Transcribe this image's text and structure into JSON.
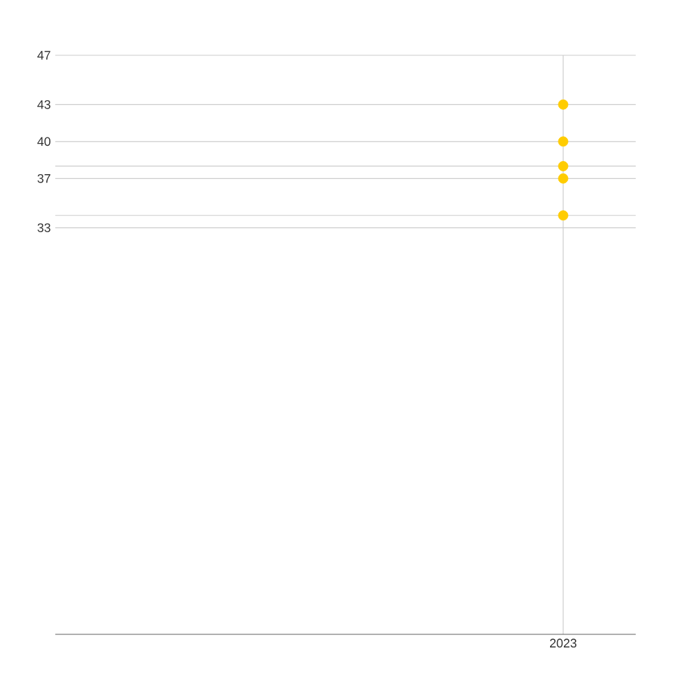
{
  "chart_data": {
    "type": "scatter",
    "categories": [
      "2023"
    ],
    "series": [
      {
        "color": "#ffcc00",
        "values": [
          43
        ]
      },
      {
        "color": "#ffcc00",
        "values": [
          40
        ]
      },
      {
        "color": "#ffcc00",
        "values": [
          38
        ]
      },
      {
        "color": "#ffcc00",
        "values": [
          37
        ]
      },
      {
        "color": "#ffcc00",
        "values": [
          34
        ]
      }
    ],
    "ylim": [
      0,
      47
    ],
    "yticks": [
      33,
      {
        "value": 34,
        "label": null
      },
      37,
      {
        "value": 38,
        "label": null
      },
      40,
      43,
      47
    ],
    "grid": true
  }
}
